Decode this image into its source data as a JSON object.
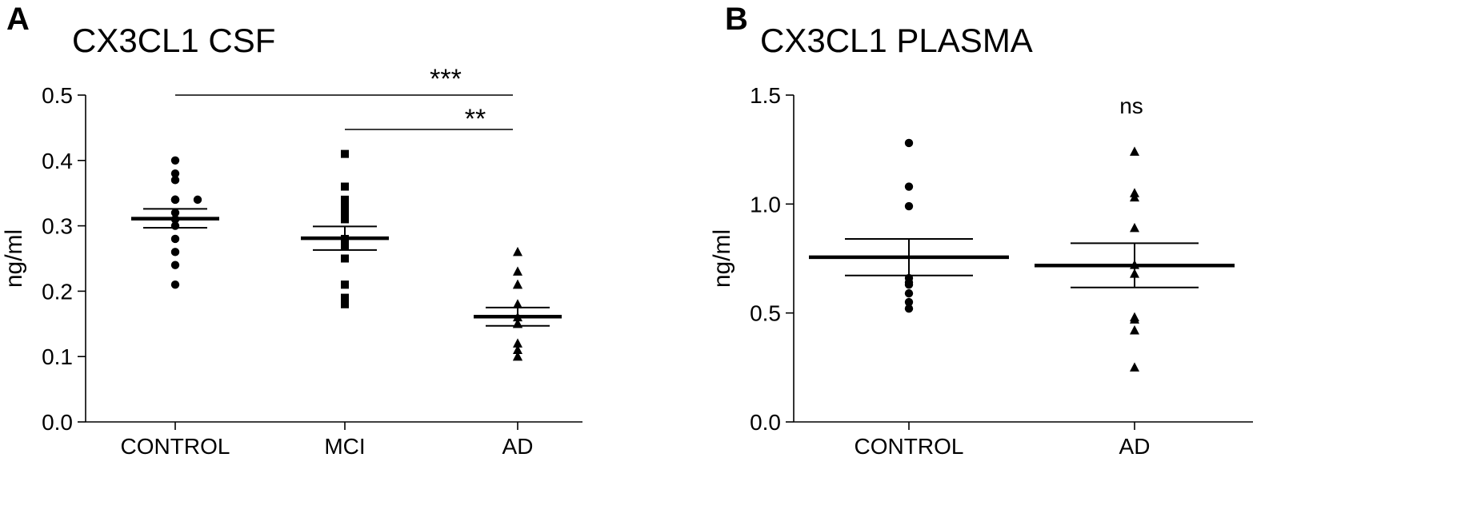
{
  "panels": [
    {
      "letter": "A",
      "title": "CX3CL1 CSF"
    },
    {
      "letter": "B",
      "title": "CX3CL1 PLASMA"
    }
  ],
  "chart_data": [
    {
      "type": "scatter",
      "title": "CX3CL1 CSF",
      "xlabel": "",
      "ylabel": "ng/ml",
      "ylim": [
        0,
        0.5
      ],
      "yticks": [
        0.0,
        0.1,
        0.2,
        0.3,
        0.4,
        0.5
      ],
      "ytick_labels": [
        "0.0",
        "0.1",
        "0.2",
        "0.3",
        "0.4",
        "0.5"
      ],
      "categories": [
        "CONTROL",
        "MCI",
        "AD"
      ],
      "grid": false,
      "series": [
        {
          "marker": "circle",
          "values": [
            0.4,
            0.38,
            0.37,
            0.34,
            0.34,
            0.34,
            0.34,
            0.32,
            0.31,
            0.3,
            0.28,
            0.26,
            0.24,
            0.21
          ],
          "mean": 0.311,
          "sem_low": 0.297,
          "sem_high": 0.326
        },
        {
          "marker": "square",
          "values": [
            0.41,
            0.36,
            0.36,
            0.34,
            0.33,
            0.32,
            0.31,
            0.28,
            0.27,
            0.25,
            0.21,
            0.21,
            0.19,
            0.18
          ],
          "mean": 0.281,
          "sem_low": 0.263,
          "sem_high": 0.299
        },
        {
          "marker": "triangle",
          "values": [
            0.26,
            0.23,
            0.21,
            0.21,
            0.18,
            0.16,
            0.15,
            0.15,
            0.15,
            0.12,
            0.11,
            0.1,
            0.1
          ],
          "mean": 0.161,
          "sem_low": 0.147,
          "sem_high": 0.175
        }
      ],
      "annotations": [
        {
          "text": "***",
          "from": "CONTROL",
          "to": "AD"
        },
        {
          "text": "**",
          "from": "MCI",
          "to": "AD"
        }
      ]
    },
    {
      "type": "scatter",
      "title": "CX3CL1 PLASMA",
      "xlabel": "",
      "ylabel": "ng/ml",
      "ylim": [
        0,
        1.5
      ],
      "yticks": [
        0.0,
        0.5,
        1.0,
        1.5
      ],
      "ytick_labels": [
        "0.0",
        "0.5",
        "1.0",
        "1.5"
      ],
      "categories": [
        "CONTROL",
        "AD"
      ],
      "grid": false,
      "series": [
        {
          "marker": "circle",
          "values": [
            1.28,
            1.08,
            0.99,
            0.66,
            0.64,
            0.63,
            0.59,
            0.55,
            0.52
          ],
          "mean": 0.756,
          "sem_low": 0.672,
          "sem_high": 0.84
        },
        {
          "marker": "triangle",
          "values": [
            1.24,
            1.05,
            1.03,
            0.89,
            0.72,
            0.68,
            0.48,
            0.47,
            0.42,
            0.25
          ],
          "mean": 0.718,
          "sem_low": 0.617,
          "sem_high": 0.82
        }
      ],
      "annotations": [
        {
          "text": "ns",
          "at": "AD"
        }
      ]
    }
  ]
}
